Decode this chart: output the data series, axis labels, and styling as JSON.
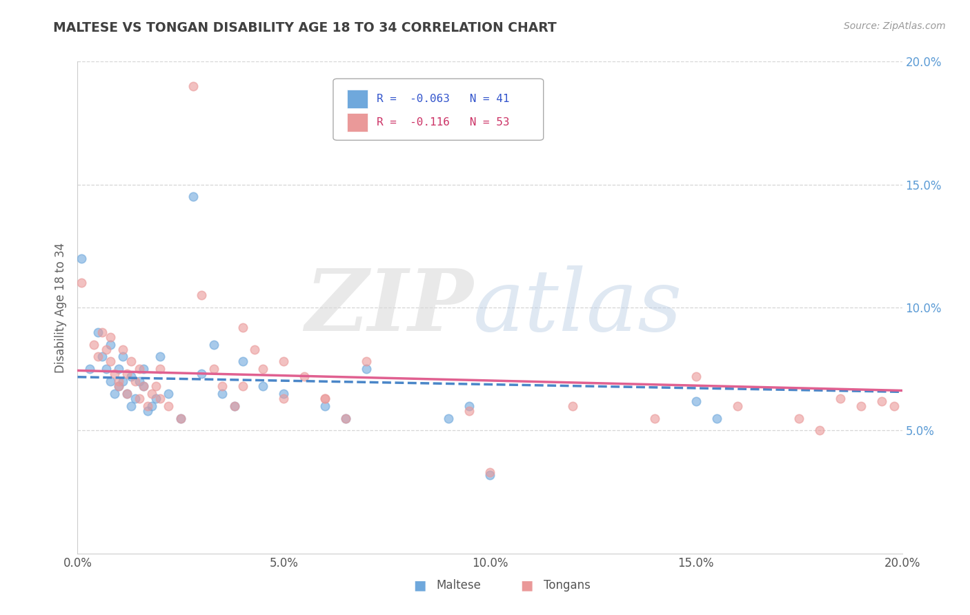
{
  "title": "MALTESE VS TONGAN DISABILITY AGE 18 TO 34 CORRELATION CHART",
  "source_text": "Source: ZipAtlas.com",
  "ylabel": "Disability Age 18 to 34",
  "xlim": [
    0.0,
    0.2
  ],
  "ylim": [
    0.0,
    0.2
  ],
  "xtick_vals": [
    0.0,
    0.05,
    0.1,
    0.15,
    0.2
  ],
  "xtick_labels": [
    "0.0%",
    "5.0%",
    "10.0%",
    "15.0%",
    "20.0%"
  ],
  "ytick_vals": [
    0.05,
    0.1,
    0.15,
    0.2
  ],
  "ytick_labels": [
    "5.0%",
    "10.0%",
    "15.0%",
    "20.0%"
  ],
  "maltese_color": "#6fa8dc",
  "tongan_color": "#ea9999",
  "maltese_line_color": "#4a86c8",
  "tongan_line_color": "#e06090",
  "maltese_R": -0.063,
  "maltese_N": 41,
  "tongan_R": -0.116,
  "tongan_N": 53,
  "maltese_x": [
    0.001,
    0.003,
    0.005,
    0.006,
    0.007,
    0.008,
    0.008,
    0.009,
    0.01,
    0.01,
    0.011,
    0.011,
    0.012,
    0.013,
    0.013,
    0.014,
    0.015,
    0.016,
    0.016,
    0.017,
    0.018,
    0.019,
    0.02,
    0.022,
    0.025,
    0.028,
    0.03,
    0.033,
    0.035,
    0.038,
    0.04,
    0.045,
    0.05,
    0.06,
    0.065,
    0.07,
    0.09,
    0.095,
    0.1,
    0.15,
    0.155
  ],
  "maltese_y": [
    0.12,
    0.075,
    0.09,
    0.08,
    0.075,
    0.085,
    0.07,
    0.065,
    0.075,
    0.068,
    0.08,
    0.07,
    0.065,
    0.072,
    0.06,
    0.063,
    0.07,
    0.068,
    0.075,
    0.058,
    0.06,
    0.063,
    0.08,
    0.065,
    0.055,
    0.145,
    0.073,
    0.085,
    0.065,
    0.06,
    0.078,
    0.068,
    0.065,
    0.06,
    0.055,
    0.075,
    0.055,
    0.06,
    0.032,
    0.062,
    0.055
  ],
  "tongan_x": [
    0.001,
    0.004,
    0.005,
    0.006,
    0.007,
    0.008,
    0.008,
    0.009,
    0.01,
    0.01,
    0.011,
    0.012,
    0.012,
    0.013,
    0.014,
    0.015,
    0.015,
    0.016,
    0.017,
    0.018,
    0.019,
    0.02,
    0.02,
    0.022,
    0.025,
    0.028,
    0.03,
    0.033,
    0.035,
    0.038,
    0.04,
    0.043,
    0.045,
    0.05,
    0.055,
    0.06,
    0.065,
    0.07,
    0.095,
    0.1,
    0.12,
    0.14,
    0.15,
    0.16,
    0.175,
    0.18,
    0.185,
    0.19,
    0.195,
    0.198,
    0.04,
    0.05,
    0.06
  ],
  "tongan_y": [
    0.11,
    0.085,
    0.08,
    0.09,
    0.083,
    0.078,
    0.088,
    0.073,
    0.07,
    0.068,
    0.083,
    0.073,
    0.065,
    0.078,
    0.07,
    0.075,
    0.063,
    0.068,
    0.06,
    0.065,
    0.068,
    0.063,
    0.075,
    0.06,
    0.055,
    0.19,
    0.105,
    0.075,
    0.068,
    0.06,
    0.092,
    0.083,
    0.075,
    0.063,
    0.072,
    0.063,
    0.055,
    0.078,
    0.058,
    0.033,
    0.06,
    0.055,
    0.072,
    0.06,
    0.055,
    0.05,
    0.063,
    0.06,
    0.062,
    0.06,
    0.068,
    0.078,
    0.063
  ],
  "background_color": "#ffffff",
  "grid_color": "#cccccc",
  "right_axis_color": "#5b9bd5",
  "title_color": "#404040",
  "axis_label_color": "#606060"
}
